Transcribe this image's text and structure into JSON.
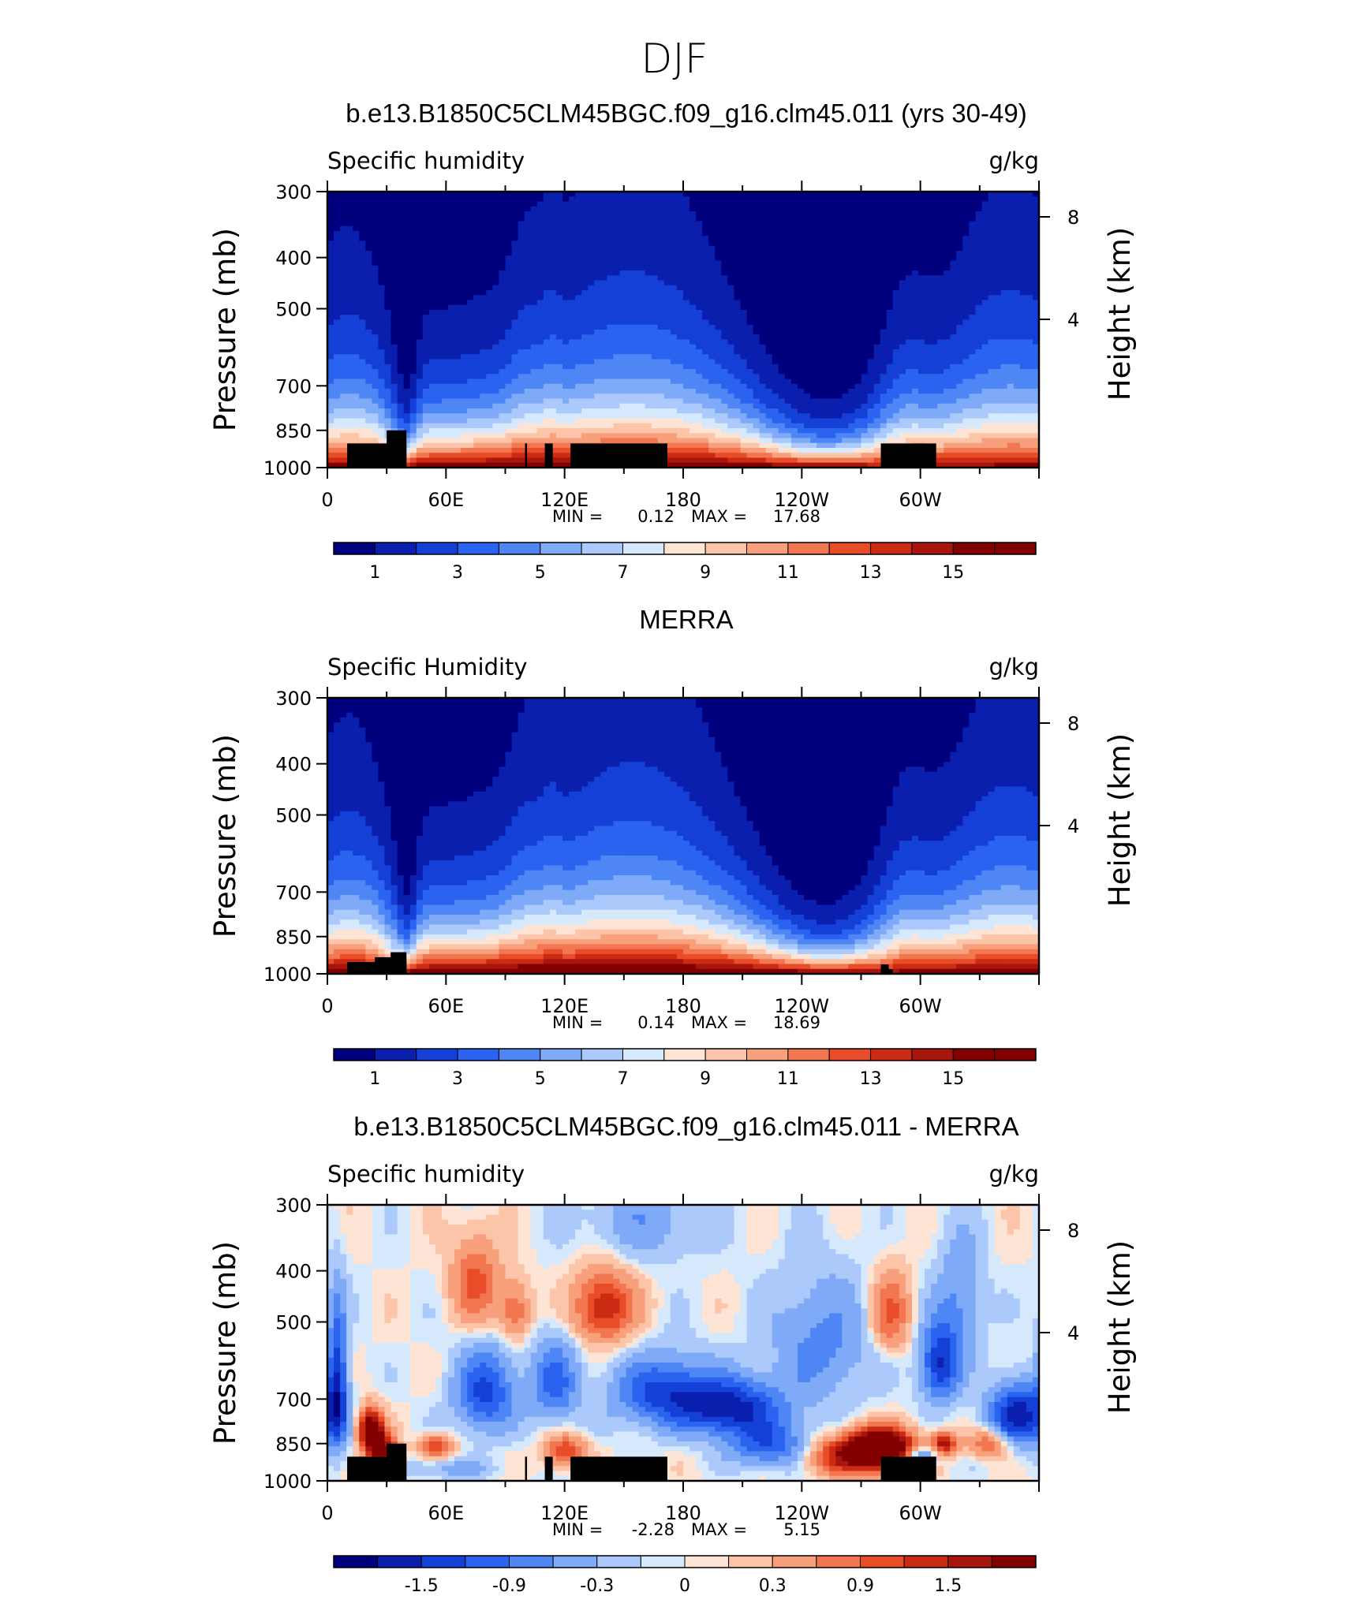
{
  "figure_title": "DJF",
  "chart_data": [
    {
      "type": "heatmap",
      "title": "b.e13.B1850C5CLM45BGC.f09_g16.clm45.011 (yrs 30-49)",
      "left_label": "Specific humidity",
      "units": "g/kg",
      "ylabel": "Pressure (mb)",
      "y2label": "Height (km)",
      "y_ticks": [
        300,
        400,
        500,
        700,
        850,
        1000
      ],
      "y2_ticks": [
        "8",
        "4"
      ],
      "x_ticks": [
        "0",
        "60E",
        "120E",
        "180",
        "120W",
        "60W"
      ],
      "min_label": "MIN =",
      "min_value": "0.12",
      "max_label": "MAX =",
      "max_value": "17.68",
      "colorbar_labels": [
        "1",
        "3",
        "5",
        "7",
        "9",
        "11",
        "13",
        "15"
      ],
      "levels": [
        1,
        2,
        3,
        4,
        5,
        6,
        7,
        8,
        9,
        10,
        11,
        12,
        13,
        14,
        15,
        16
      ],
      "mode": "abs"
    },
    {
      "type": "heatmap",
      "title": "MERRA",
      "left_label": "Specific Humidity",
      "units": "g/kg",
      "ylabel": "Pressure (mb)",
      "y2label": "Height (km)",
      "y_ticks": [
        300,
        400,
        500,
        700,
        850,
        1000
      ],
      "y2_ticks": [
        "8",
        "4"
      ],
      "x_ticks": [
        "0",
        "60E",
        "120E",
        "180",
        "120W",
        "60W"
      ],
      "min_label": "MIN =",
      "min_value": "0.14",
      "max_label": "MAX =",
      "max_value": "18.69",
      "colorbar_labels": [
        "1",
        "3",
        "5",
        "7",
        "9",
        "11",
        "13",
        "15"
      ],
      "levels": [
        1,
        2,
        3,
        4,
        5,
        6,
        7,
        8,
        9,
        10,
        11,
        12,
        13,
        14,
        15,
        16
      ],
      "mode": "abs"
    },
    {
      "type": "heatmap",
      "title": "b.e13.B1850C5CLM45BGC.f09_g16.clm45.011 - MERRA",
      "left_label": "Specific humidity",
      "units": "g/kg",
      "ylabel": "Pressure (mb)",
      "y2label": "Height (km)",
      "y_ticks": [
        300,
        400,
        500,
        700,
        850,
        1000
      ],
      "y2_ticks": [
        "8",
        "4"
      ],
      "x_ticks": [
        "0",
        "60E",
        "120E",
        "180",
        "120W",
        "60W"
      ],
      "min_label": "MIN =",
      "min_value": "-2.28",
      "max_label": "MAX =",
      "max_value": "5.15",
      "colorbar_labels": [
        "-1.5",
        "-0.9",
        "-0.3",
        "0",
        "0.3",
        "0.9",
        "1.5"
      ],
      "levels": [
        -1.8,
        -1.5,
        -1.2,
        -0.9,
        -0.6,
        -0.3,
        -0.1,
        0,
        0.1,
        0.3,
        0.6,
        0.9,
        1.2,
        1.5,
        1.8
      ],
      "mode": "diff"
    }
  ],
  "colors": {
    "palette": [
      "#00007f",
      "#0a1fae",
      "#1440d8",
      "#2a63f0",
      "#4f86f5",
      "#7eaaf7",
      "#abc9fa",
      "#d6e8fc",
      "#fde4d4",
      "#fcc5aa",
      "#f89f7c",
      "#f2764f",
      "#e84c28",
      "#cc2b13",
      "#a8150c",
      "#820000"
    ],
    "land": "#000000"
  }
}
